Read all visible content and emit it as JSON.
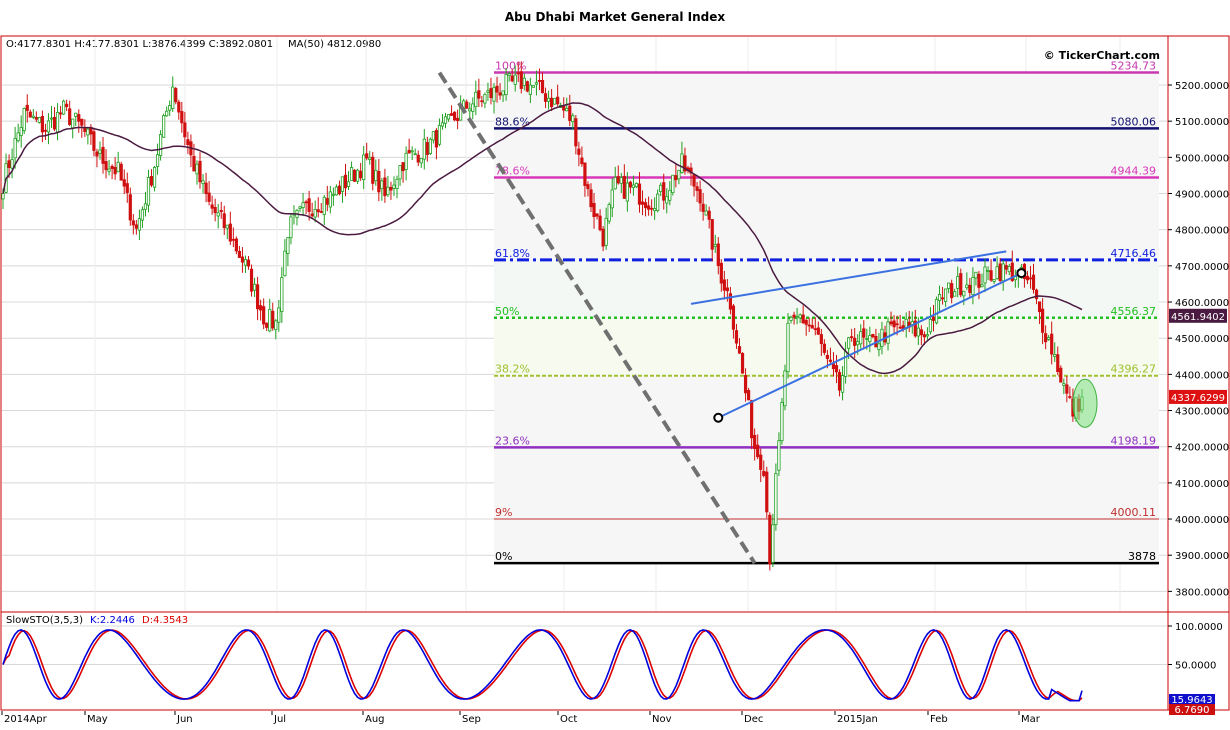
{
  "chart_data": {
    "type": "candlestick",
    "title": "Abu Dhabi Market General Index",
    "ohlc_readout": "O:4177.8301 H:4177.8301 L:3876.4399 C:3892.0801",
    "ma_readout": "MA(50) 4812.0980",
    "watermark": "© TickerChart.com",
    "price_axis": {
      "range": [
        3730,
        5300
      ],
      "ticks": [
        "3800.0000",
        "3900.0000",
        "4000.0000",
        "4100.0000",
        "4200.0000",
        "4300.0000",
        "4400.0000",
        "4500.0000",
        "4600.0000",
        "4700.0000",
        "4800.0000",
        "4900.0000",
        "5000.0000",
        "5100.0000",
        "5200.0000"
      ],
      "tick_values": [
        3800,
        3900,
        4000,
        4100,
        4200,
        4300,
        4400,
        4500,
        4600,
        4700,
        4800,
        4900,
        5000,
        5100,
        5200
      ]
    },
    "last_price_label": "4337.6299",
    "last_price": 4337.63,
    "ma_last_label": "4561.9402",
    "ma_last": 4561.94,
    "fib_levels": [
      {
        "pct": "100%",
        "value": "5234.73",
        "price": 5234.73,
        "color": "#c838b0",
        "style": "solid"
      },
      {
        "pct": "88.6%",
        "value": "5080.06",
        "price": 5080.06,
        "color": "#101070",
        "style": "solid"
      },
      {
        "pct": "78.6%",
        "value": "4944.39",
        "price": 4944.39,
        "color": "#d838b8",
        "style": "solid"
      },
      {
        "pct": "61.8%",
        "value": "4716.46",
        "price": 4716.46,
        "color": "#1020e0",
        "style": "dashdot"
      },
      {
        "pct": "50%",
        "value": "4556.37",
        "price": 4556.37,
        "color": "#20c020",
        "style": "dotted"
      },
      {
        "pct": "38.2%",
        "value": "4396.27",
        "price": 4396.27,
        "color": "#a0c030",
        "style": "dashed"
      },
      {
        "pct": "23.6%",
        "value": "4198.19",
        "price": 4198.19,
        "color": "#9030c0",
        "style": "solid"
      },
      {
        "pct": "9%",
        "value": "4000.11",
        "price": 4000.11,
        "color": "#c03030",
        "style": "thin"
      },
      {
        "pct": "0%",
        "value": "3878",
        "price": 3878,
        "color": "#000000",
        "style": "solid"
      }
    ],
    "months": [
      "2014Apr",
      "May",
      "Jun",
      "Jul",
      "Aug",
      "Sep",
      "Oct",
      "Nov",
      "Dec",
      "2015Jan",
      "Feb",
      "Mar"
    ],
    "close_trajectory": [
      [
        0,
        4930
      ],
      [
        7,
        5120
      ],
      [
        14,
        5080
      ],
      [
        20,
        5130
      ],
      [
        26,
        5080
      ],
      [
        32,
        5000
      ],
      [
        38,
        4960
      ],
      [
        44,
        4800
      ],
      [
        50,
        4980
      ],
      [
        56,
        5200
      ],
      [
        62,
        5000
      ],
      [
        68,
        4870
      ],
      [
        74,
        4800
      ],
      [
        80,
        4700
      ],
      [
        86,
        4560
      ],
      [
        90,
        4540
      ],
      [
        94,
        4800
      ],
      [
        100,
        4860
      ],
      [
        108,
        4890
      ],
      [
        114,
        4940
      ],
      [
        120,
        4990
      ],
      [
        126,
        4890
      ],
      [
        132,
        4990
      ],
      [
        140,
        5030
      ],
      [
        148,
        5100
      ],
      [
        154,
        5150
      ],
      [
        160,
        5170
      ],
      [
        166,
        5200
      ],
      [
        172,
        5210
      ],
      [
        178,
        5180
      ],
      [
        184,
        5140
      ],
      [
        188,
        5100
      ],
      [
        193,
        4900
      ],
      [
        198,
        4780
      ],
      [
        202,
        4920
      ],
      [
        208,
        4910
      ],
      [
        213,
        4880
      ],
      [
        218,
        4900
      ],
      [
        224,
        4980
      ],
      [
        230,
        4900
      ],
      [
        236,
        4700
      ],
      [
        240,
        4600
      ],
      [
        244,
        4400
      ],
      [
        248,
        4200
      ],
      [
        251,
        4150
      ],
      [
        253,
        3900
      ],
      [
        256,
        4200
      ],
      [
        259,
        4520
      ],
      [
        263,
        4560
      ],
      [
        268,
        4520
      ],
      [
        272,
        4430
      ],
      [
        276,
        4360
      ],
      [
        280,
        4510
      ],
      [
        286,
        4480
      ],
      [
        292,
        4520
      ],
      [
        298,
        4530
      ],
      [
        304,
        4510
      ],
      [
        310,
        4620
      ],
      [
        316,
        4650
      ],
      [
        322,
        4660
      ],
      [
        328,
        4690
      ],
      [
        334,
        4680
      ],
      [
        339,
        4650
      ],
      [
        343,
        4540
      ],
      [
        347,
        4450
      ],
      [
        351,
        4340
      ],
      [
        353,
        4300
      ],
      [
        356,
        4337
      ]
    ],
    "overlays": {
      "downtrend_line": [
        [
          5263.0,
          0
        ],
        [
          3878,
          290
        ]
      ],
      "trend_lines": "channel"
    },
    "stochastic": {
      "label": "SlowSTO(3,5,3)",
      "k_label": "K:2.2446",
      "d_label": "D:4.3543",
      "ticks": [
        "50.0000",
        "100.0000"
      ],
      "tick_values": [
        50,
        100
      ],
      "k_last_label": "15.9643",
      "d_last_label": "6.7690",
      "k_color": "#0000dd",
      "d_color": "#dd0000"
    },
    "colors": {
      "up": "#20a020",
      "down": "#d01010",
      "ma": "#4a1a40"
    }
  }
}
